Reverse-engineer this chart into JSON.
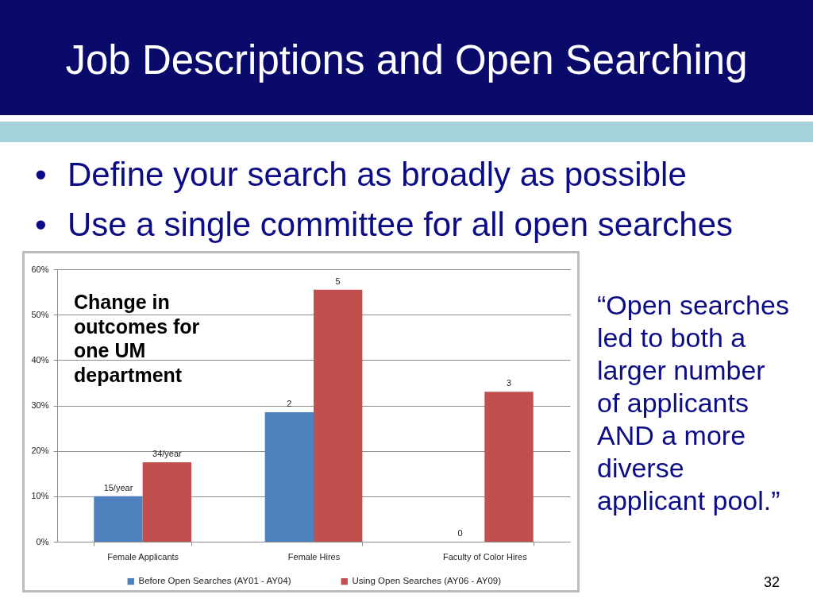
{
  "chart_data": {
    "type": "bar",
    "title": "Job Descriptions and Open Searching",
    "categories": [
      "Female Applicants",
      "Female Hires",
      "Faculty of Color Hires"
    ],
    "series": [
      {
        "name": "Before Open Searches (AY01 - AY04)",
        "color": "#4f81bd",
        "values": [
          10,
          28.5,
          0
        ]
      },
      {
        "name": "Using Open Searches (AY06 - AY09)",
        "color": "#c0504d",
        "values": [
          17.5,
          55.5,
          33
        ]
      }
    ],
    "ylim": [
      0,
      60
    ],
    "yticks": [
      {
        "value": 0,
        "label": "0%"
      },
      {
        "value": 10,
        "label": "10%"
      },
      {
        "value": 20,
        "label": "20%"
      },
      {
        "value": 30,
        "label": "30%"
      },
      {
        "value": 40,
        "label": "40%"
      },
      {
        "value": 50,
        "label": "50%"
      },
      {
        "value": 60,
        "label": "60%"
      }
    ],
    "grid": "y",
    "legend": "bottom",
    "annotations": [
      "• Define your search as broadly as possible",
      "• Use a single committee for all open searches",
      "Change in outcomes for one UM department",
      "“Open searches led to both a larger number of applicants AND a more diverse applicant pool.”",
      "32",
      {
        "text": "15/year",
        "x": "Female Applicants",
        "y": 10
      },
      {
        "text": "34/year",
        "x": "Female Applicants",
        "y": 17.5
      },
      {
        "text": "2",
        "x": "Female Hires",
        "y": 28.5
      },
      {
        "text": "5",
        "x": "Female Hires",
        "y": 55.5
      },
      {
        "text": "0",
        "x": "Faculty of Color Hires",
        "y": 0
      },
      {
        "text": "3",
        "x": "Faculty of Color Hires",
        "y": 33
      }
    ]
  }
}
